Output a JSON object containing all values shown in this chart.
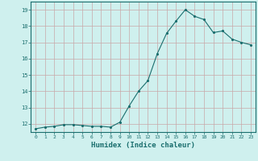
{
  "x": [
    0,
    1,
    2,
    3,
    4,
    5,
    6,
    7,
    8,
    9,
    10,
    11,
    12,
    13,
    14,
    15,
    16,
    17,
    18,
    19,
    20,
    21,
    22,
    23
  ],
  "y": [
    11.7,
    11.8,
    11.85,
    11.95,
    11.95,
    11.9,
    11.85,
    11.85,
    11.8,
    12.1,
    13.1,
    14.0,
    14.65,
    16.3,
    17.55,
    18.3,
    19.0,
    18.6,
    18.4,
    17.6,
    17.7,
    17.2,
    17.0,
    16.85
  ],
  "xlabel": "Humidex (Indice chaleur)",
  "line_color": "#1a6e6e",
  "marker_color": "#1a6e6e",
  "bg_color": "#cff0ee",
  "grid_color": "#c8a8a8",
  "ylim": [
    11.5,
    19.5
  ],
  "yticks": [
    12,
    13,
    14,
    15,
    16,
    17,
    18,
    19
  ],
  "xticks": [
    0,
    1,
    2,
    3,
    4,
    5,
    6,
    7,
    8,
    9,
    10,
    11,
    12,
    13,
    14,
    15,
    16,
    17,
    18,
    19,
    20,
    21,
    22,
    23
  ],
  "tick_labels": [
    "0",
    "1",
    "2",
    "3",
    "4",
    "5",
    "6",
    "7",
    "8",
    "9",
    "10",
    "11",
    "12",
    "13",
    "14",
    "15",
    "16",
    "17",
    "18",
    "19",
    "20",
    "21",
    "22",
    "23"
  ]
}
